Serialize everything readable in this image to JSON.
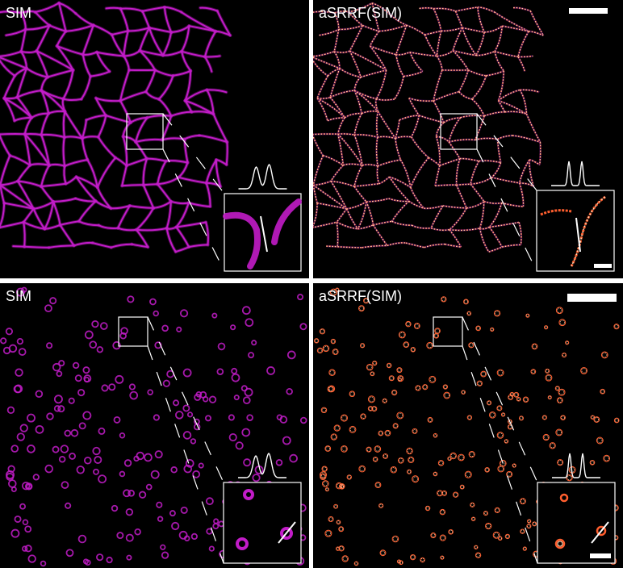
{
  "panels": [
    {
      "id": "top-left",
      "label": "SIM",
      "style": "sim",
      "structure": "network",
      "has_scalebar": false,
      "inset_scalebar": false
    },
    {
      "id": "top-right",
      "label": "aSRRF(SIM)",
      "style": "asrrf",
      "structure": "network",
      "has_scalebar": true,
      "inset_scalebar": true
    },
    {
      "id": "bottom-left",
      "label": "SIM",
      "style": "sim",
      "structure": "vesicles",
      "has_scalebar": false,
      "inset_scalebar": false
    },
    {
      "id": "bottom-right",
      "label": "aSRRF(SIM)",
      "style": "asrrf",
      "structure": "vesicles",
      "has_scalebar": true,
      "inset_scalebar": true
    }
  ],
  "colors": {
    "background": "#000000",
    "sim": "#c21cc8",
    "asrrf_core": "#ffe9c8",
    "asrrf_edge": "#ff5e2e",
    "asrrf_halo": "#5a1270",
    "annotation": "#ffffff",
    "separator": "#ffffff"
  },
  "profile_plot": {
    "sim": {
      "description_peaks": 2,
      "shape": "broad-overlapping"
    },
    "asrrf": {
      "description_peaks": 2,
      "shape": "narrow-separated"
    }
  }
}
